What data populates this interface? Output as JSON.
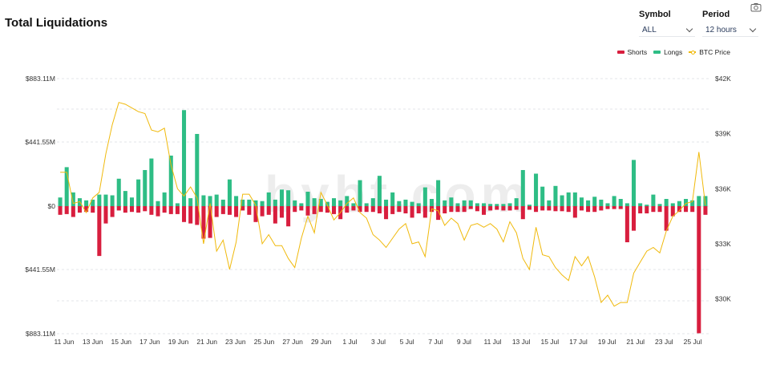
{
  "title": "Total Liquidations",
  "controls": {
    "symbol_label": "Symbol",
    "symbol_value": "ALL",
    "period_label": "Period",
    "period_value": "12 hours"
  },
  "icons": {
    "screenshot": "camera-icon",
    "dropdown": "chevron-down-icon"
  },
  "watermark": "bybt.com",
  "colors": {
    "shorts": "#d81e3e",
    "longs": "#2ebd85",
    "btc": "#f0b90b",
    "grid": "#e3e5e8"
  },
  "chart_data": {
    "type": "bar",
    "legend": [
      "Shorts",
      "Longs",
      "BTC Price"
    ],
    "legend_position": "top-right",
    "grid": true,
    "y_left_ticks": [
      "$883.11M",
      "$441.55M",
      "$0",
      "$441.55M",
      "$883.11M"
    ],
    "y_left_range_millions": [
      -883.11,
      883.11
    ],
    "y_right_ticks": [
      "$42K",
      "$39K",
      "$36K",
      "$33K",
      "$30K"
    ],
    "y_right_range": [
      28100,
      42000
    ],
    "x_ticks": [
      "11 Jun",
      "13 Jun",
      "15 Jun",
      "17 Jun",
      "19 Jun",
      "21 Jun",
      "23 Jun",
      "25 Jun",
      "27 Jun",
      "29 Jun",
      "1 Jul",
      "3 Jul",
      "5 Jul",
      "7 Jul",
      "9 Jul",
      "11 Jul",
      "13 Jul",
      "15 Jul",
      "17 Jul",
      "19 Jul",
      "21 Jul",
      "23 Jul",
      "25 Jul"
    ],
    "series": [
      {
        "name": "Longs",
        "values": [
          60,
          270,
          95,
          55,
          40,
          45,
          80,
          80,
          75,
          190,
          105,
          60,
          185,
          250,
          330,
          35,
          95,
          350,
          20,
          665,
          55,
          500,
          75,
          70,
          80,
          45,
          185,
          70,
          45,
          45,
          40,
          35,
          95,
          45,
          115,
          110,
          40,
          20,
          100,
          55,
          50,
          30,
          55,
          40,
          70,
          20,
          180,
          20,
          55,
          210,
          45,
          95,
          35,
          45,
          30,
          20,
          130,
          50,
          180,
          40,
          60,
          20,
          40,
          40,
          20,
          20,
          15,
          15,
          15,
          20,
          55,
          250,
          10,
          225,
          135,
          40,
          140,
          75,
          95,
          95,
          60,
          40,
          65,
          45,
          20,
          70,
          50,
          20,
          320,
          20,
          10,
          80,
          15,
          50,
          20,
          35,
          50,
          40,
          70,
          70
        ]
      },
      {
        "name": "Shorts",
        "values": [
          -60,
          -55,
          -75,
          -45,
          -40,
          -45,
          -345,
          -120,
          -75,
          -30,
          -45,
          -40,
          -45,
          -35,
          -60,
          -70,
          -45,
          -55,
          -55,
          -110,
          -120,
          -130,
          -225,
          -220,
          -75,
          -55,
          -60,
          -75,
          -30,
          -60,
          -110,
          -70,
          -60,
          -120,
          -80,
          -140,
          -40,
          -30,
          -65,
          -55,
          -40,
          -45,
          -55,
          -90,
          -45,
          -30,
          -40,
          -40,
          -40,
          -50,
          -90,
          -55,
          -40,
          -50,
          -80,
          -50,
          -80,
          -40,
          -95,
          -50,
          -40,
          -40,
          -40,
          -20,
          -35,
          -60,
          -30,
          -25,
          -30,
          -30,
          -25,
          -90,
          -25,
          -40,
          -30,
          -30,
          -35,
          -35,
          -40,
          -80,
          -30,
          -40,
          -40,
          -30,
          -20,
          -20,
          -20,
          -250,
          -170,
          -50,
          -50,
          -40,
          -40,
          -170,
          -70,
          -40,
          -40,
          -40,
          -880,
          -60
        ]
      },
      {
        "name": "BTC Price",
        "values": [
          36900,
          36900,
          35200,
          35300,
          34700,
          35500,
          35800,
          37900,
          39500,
          40700,
          40600,
          40400,
          40200,
          40100,
          39200,
          39100,
          39300,
          37300,
          36000,
          35600,
          36100,
          35500,
          33000,
          35200,
          32600,
          33200,
          31600,
          33100,
          35700,
          35700,
          35100,
          33000,
          33500,
          32900,
          32900,
          32200,
          31700,
          33300,
          34500,
          33600,
          35800,
          35100,
          34300,
          34700,
          35200,
          35500,
          34700,
          34400,
          33500,
          33200,
          32800,
          33300,
          33800,
          34100,
          33000,
          33100,
          32300,
          34900,
          34800,
          34000,
          34400,
          34100,
          33200,
          34000,
          34100,
          33900,
          34100,
          33800,
          33100,
          34200,
          33600,
          32200,
          31600,
          33900,
          32400,
          32300,
          31700,
          31300,
          31000,
          32300,
          31800,
          32300,
          31200,
          29800,
          30200,
          29600,
          29800,
          29800,
          31400,
          32000,
          32600,
          32800,
          32500,
          33700,
          34500,
          34800,
          35200,
          35300,
          38000,
          35100
        ]
      }
    ]
  }
}
